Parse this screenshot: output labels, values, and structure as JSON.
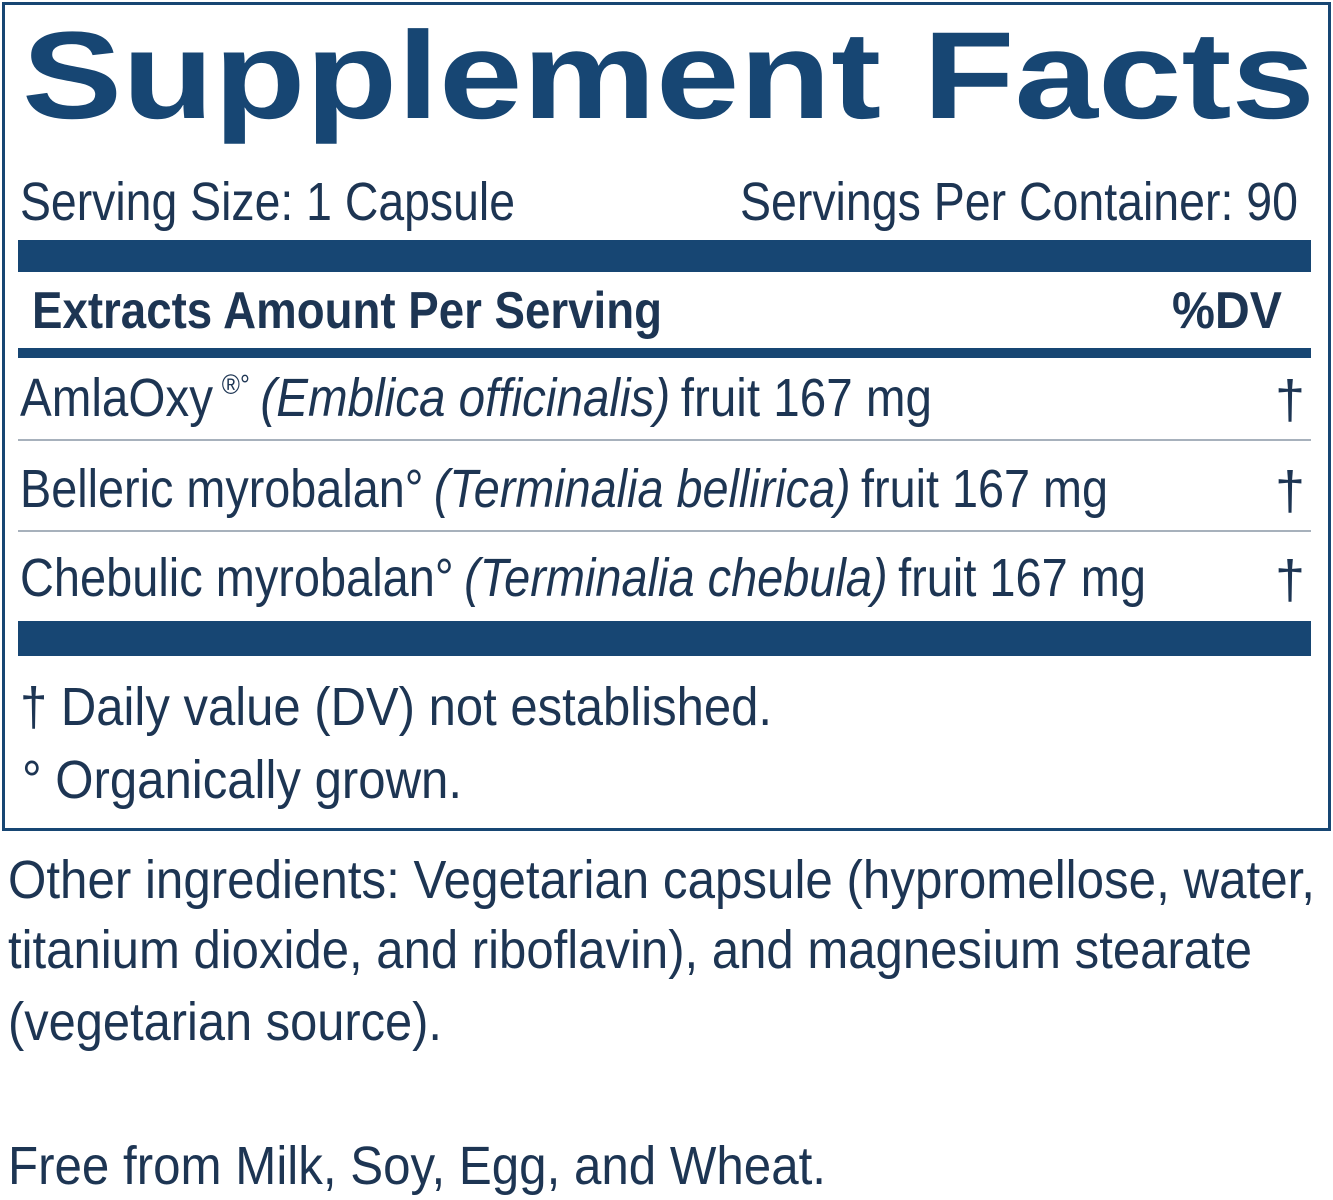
{
  "title": "Supplement Facts",
  "serving": {
    "size": "Serving Size: 1 Capsule",
    "per_container": "Servings Per Container: 90"
  },
  "table": {
    "header": [
      "Extracts Amount Per Serving",
      "%DV"
    ],
    "rows": [
      {
        "name": "AmlaOxy",
        "marks": "®°",
        "latin": "(Emblica officinalis)",
        "amount": "fruit 167 mg",
        "dv": "†"
      },
      {
        "name": "Belleric myrobalan°",
        "latin": "(Terminalia bellirica)",
        "amount": "fruit 167 mg",
        "dv": "†"
      },
      {
        "name": "Chebulic myrobalan°",
        "latin": "(Terminalia chebula)",
        "amount": "fruit 167 mg",
        "dv": "†"
      }
    ]
  },
  "footnotes": [
    "† Daily value (DV) not established.",
    "° Organically grown."
  ],
  "other_ingredients": [
    "Other ingredients: Vegetarian capsule (hypromellose, water,",
    "titanium dioxide, and riboflavin), and magnesium stearate",
    "(vegetarian source)."
  ],
  "allergen_note": "Free from Milk, Soy, Egg, and Wheat."
}
